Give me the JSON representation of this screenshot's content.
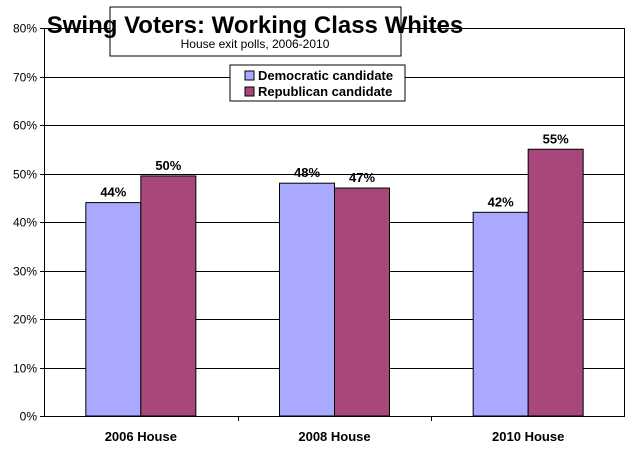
{
  "chart_data": {
    "type": "bar",
    "title": "Swing Voters: Working Class Whites",
    "subtitle": "House exit polls, 2006-2010",
    "categories": [
      "2006 House",
      "2008 House",
      "2010 House"
    ],
    "series": [
      {
        "name": "Democratic candidate",
        "values": [
          44,
          48,
          42
        ],
        "labels": [
          "44%",
          "48%",
          "42%"
        ],
        "color": "#a9a9ff"
      },
      {
        "name": "Republican candidate",
        "values": [
          49.5,
          47,
          55
        ],
        "labels": [
          "50%",
          "47%",
          "55%"
        ],
        "color": "#a8487a"
      }
    ],
    "ylim": [
      0,
      80
    ],
    "yticks": [
      0,
      10,
      20,
      30,
      40,
      50,
      60,
      70,
      80
    ],
    "ytick_labels": [
      "0%",
      "10%",
      "20%",
      "30%",
      "40%",
      "50%",
      "60%",
      "70%",
      "80%"
    ],
    "grid": true,
    "legend_position": "top-center"
  }
}
